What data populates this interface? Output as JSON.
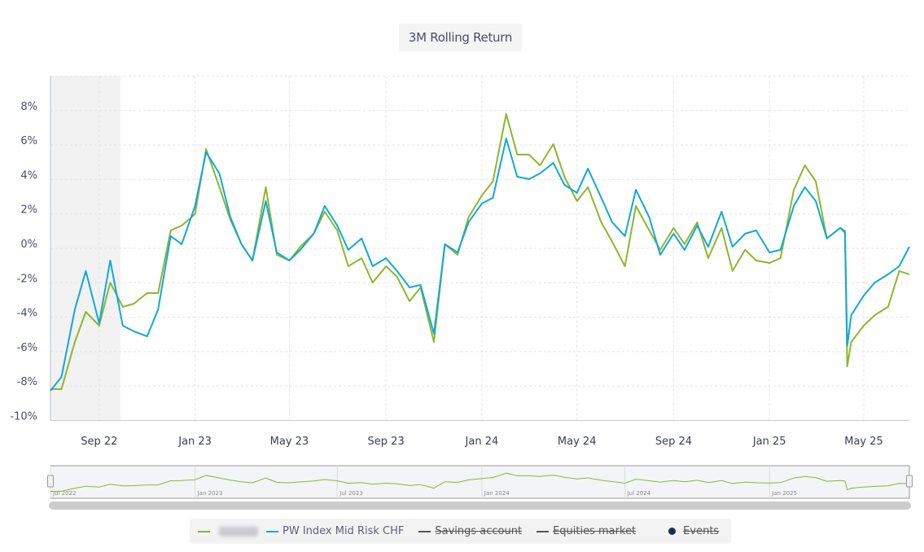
{
  "chart_data": {
    "type": "line",
    "title": "3M Rolling Return",
    "xlabel": "",
    "ylabel": "",
    "x_range": [
      "2022-07-01",
      "2025-06-28"
    ],
    "ylim": [
      -10,
      10
    ],
    "y_ticks": [
      -10,
      -8,
      -6,
      -4,
      -2,
      0,
      2,
      4,
      6,
      8
    ],
    "y_tick_labels": [
      "-10%",
      "-8%",
      "-6%",
      "-4%",
      "-2%",
      "0%",
      "2%",
      "4%",
      "6%",
      "8%"
    ],
    "x_ticks": [
      "2022-09-01",
      "2023-01-01",
      "2023-05-01",
      "2023-09-01",
      "2024-01-01",
      "2024-05-01",
      "2024-09-01",
      "2025-01-01",
      "2025-05-01"
    ],
    "x_tick_labels": [
      "Sep 22",
      "Jan 23",
      "May 23",
      "Sep 23",
      "Jan 24",
      "May 24",
      "Sep 24",
      "Jan 25",
      "May 25"
    ],
    "grid": true,
    "shaded_range": [
      "2022-07-01",
      "2022-09-28"
    ],
    "x": [
      "2022-07-01",
      "2022-07-15",
      "2022-08-01",
      "2022-08-15",
      "2022-09-01",
      "2022-09-15",
      "2022-10-01",
      "2022-10-15",
      "2022-11-01",
      "2022-11-15",
      "2022-12-01",
      "2022-12-15",
      "2023-01-01",
      "2023-01-15",
      "2023-02-01",
      "2023-02-15",
      "2023-03-01",
      "2023-03-15",
      "2023-04-01",
      "2023-04-15",
      "2023-05-01",
      "2023-05-15",
      "2023-06-01",
      "2023-06-15",
      "2023-07-01",
      "2023-07-15",
      "2023-08-01",
      "2023-08-15",
      "2023-09-01",
      "2023-09-15",
      "2023-10-01",
      "2023-10-15",
      "2023-11-01",
      "2023-11-15",
      "2023-12-01",
      "2023-12-15",
      "2024-01-01",
      "2024-01-15",
      "2024-02-01",
      "2024-02-15",
      "2024-03-01",
      "2024-03-15",
      "2024-04-01",
      "2024-04-15",
      "2024-05-01",
      "2024-05-15",
      "2024-06-01",
      "2024-06-15",
      "2024-07-01",
      "2024-07-15",
      "2024-08-01",
      "2024-08-15",
      "2024-09-01",
      "2024-09-15",
      "2024-10-01",
      "2024-10-15",
      "2024-11-01",
      "2024-11-15",
      "2024-12-01",
      "2024-12-15",
      "2025-01-01",
      "2025-01-15",
      "2025-02-01",
      "2025-02-15",
      "2025-03-01",
      "2025-03-15",
      "2025-04-01",
      "2025-04-07",
      "2025-04-10",
      "2025-04-15",
      "2025-05-01",
      "2025-05-15",
      "2025-06-01",
      "2025-06-15",
      "2025-06-28"
    ],
    "series": [
      {
        "name": "",
        "color": "#8cb82a",
        "values": [
          -8.18,
          -8.18,
          -5.44,
          -3.69,
          -4.49,
          -1.99,
          -3.4,
          -3.22,
          -2.6,
          -2.6,
          1.04,
          1.32,
          1.99,
          5.77,
          3.55,
          1.65,
          0.24,
          -0.71,
          3.55,
          -0.38,
          -0.71,
          0.09,
          0.85,
          2.13,
          1.04,
          -1.04,
          -0.57,
          -1.99,
          -1.04,
          -1.65,
          -3.07,
          -2.27,
          -5.44,
          0.24,
          -0.38,
          1.8,
          3.07,
          3.88,
          7.8,
          5.44,
          5.44,
          4.82,
          6.05,
          4.16,
          2.74,
          3.55,
          1.51,
          0.38,
          -1.04,
          2.46,
          1.04,
          -0.09,
          1.18,
          0.24,
          1.51,
          -0.57,
          1.18,
          -1.32,
          -0.09,
          -0.71,
          -0.85,
          -0.57,
          3.4,
          4.82,
          3.88,
          0.57,
          1.18,
          0.9,
          -6.86,
          -5.44,
          -4.49,
          -3.88,
          -3.4,
          -1.32,
          -1.51
        ]
      },
      {
        "name": "PW Index Mid Risk CHF",
        "color": "#10a8da",
        "values": [
          -8.27,
          -7.47,
          -3.55,
          -1.32,
          -4.35,
          -0.71,
          -4.49,
          -4.82,
          -5.11,
          -3.55,
          0.71,
          0.24,
          2.46,
          5.58,
          4.35,
          1.8,
          0.24,
          -0.71,
          2.74,
          -0.24,
          -0.71,
          -0.09,
          0.85,
          2.46,
          1.32,
          -0.09,
          0.57,
          -1.04,
          -0.57,
          -1.32,
          -2.27,
          -2.13,
          -4.96,
          0.24,
          -0.24,
          1.51,
          2.6,
          2.93,
          6.38,
          4.16,
          4.02,
          4.35,
          4.96,
          3.69,
          3.22,
          4.63,
          2.93,
          1.51,
          0.71,
          3.4,
          1.8,
          -0.38,
          0.85,
          -0.09,
          1.32,
          0.09,
          2.13,
          0.09,
          0.85,
          1.04,
          -0.24,
          -0.09,
          2.46,
          3.55,
          2.74,
          0.57,
          1.18,
          1.0,
          -5.67,
          -3.88,
          -2.74,
          -1.99,
          -1.51,
          -1.04,
          0.09
        ]
      }
    ],
    "legend_placement": "bottom",
    "navigator": {
      "labels": [
        "Jul 2022",
        "Jan 2023",
        "Jul 2023",
        "Jan 2024",
        "Jul 2024",
        "Jan 2025"
      ],
      "label_dates": [
        "2022-07-01",
        "2023-01-01",
        "2023-07-01",
        "2024-01-01",
        "2024-07-01",
        "2025-01-01"
      ]
    }
  },
  "legend": {
    "items": [
      {
        "label": "",
        "color": "#8cb82a",
        "blurred": true,
        "active": true
      },
      {
        "label": "PW Index Mid Risk CHF",
        "color": "#10a8da",
        "active": true
      },
      {
        "label": "Savings account",
        "color": "#555555",
        "active": false
      },
      {
        "label": "Equities market",
        "color": "#555555",
        "active": false
      },
      {
        "label": "Events",
        "color": "#1b2b57",
        "active": false
      }
    ]
  }
}
